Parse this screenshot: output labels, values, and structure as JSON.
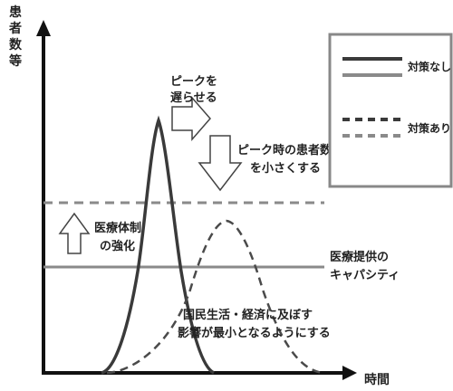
{
  "axes": {
    "y_label_chars": [
      "患",
      "者",
      "数",
      "等"
    ],
    "x_label": "時間"
  },
  "legend": {
    "without_measures": "対策なし",
    "with_measures": "対策あり"
  },
  "annotations": {
    "delay_peak": [
      "ピークを",
      "遅らせる"
    ],
    "reduce_peak": [
      "ピーク時の患者数等",
      "を小さくする"
    ],
    "strengthen_care": [
      "医療体制",
      "の強化"
    ],
    "capacity": [
      "医療提供の",
      "キャパシティ"
    ],
    "minimize_impact": [
      "国民生活・経済に及ぼす",
      "影響が最小となるようにする"
    ]
  },
  "colors": {
    "curve_dark": "#3a3a3a",
    "line_gray": "#8a8a8a",
    "arrow_fill": "#ffffff",
    "arrow_stroke": "#444444",
    "legend_border": "#888888"
  },
  "icons": {
    "axis_arrow": "arrowhead",
    "delay_arrow": "right-arrow",
    "reduce_arrow": "down-arrow",
    "strengthen_arrow": "up-arrow"
  }
}
